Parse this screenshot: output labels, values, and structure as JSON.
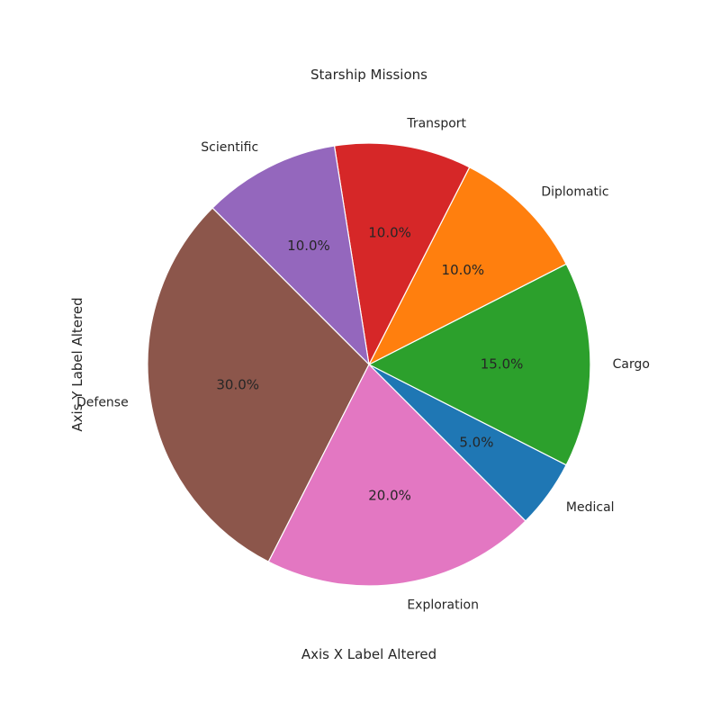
{
  "chart_data": {
    "type": "pie",
    "title": "Starship Missions",
    "xlabel": "Axis X Label Altered",
    "ylabel": "Axis Y Label Altered",
    "start_angle_deg": -45,
    "direction": "counterclockwise",
    "slices": [
      {
        "label": "Medical",
        "value": 5.0,
        "pct_label": "5.0%",
        "color": "#1f77b4"
      },
      {
        "label": "Cargo",
        "value": 15.0,
        "pct_label": "15.0%",
        "color": "#2ca02c"
      },
      {
        "label": "Diplomatic",
        "value": 10.0,
        "pct_label": "10.0%",
        "color": "#ff7f0e"
      },
      {
        "label": "Transport",
        "value": 10.0,
        "pct_label": "10.0%",
        "color": "#d62728"
      },
      {
        "label": "Scientific",
        "value": 10.0,
        "pct_label": "10.0%",
        "color": "#9467bd"
      },
      {
        "label": "Defense",
        "value": 30.0,
        "pct_label": "30.0%",
        "color": "#8c564b"
      },
      {
        "label": "Exploration",
        "value": 20.0,
        "pct_label": "20.0%",
        "color": "#e377c2"
      }
    ]
  }
}
